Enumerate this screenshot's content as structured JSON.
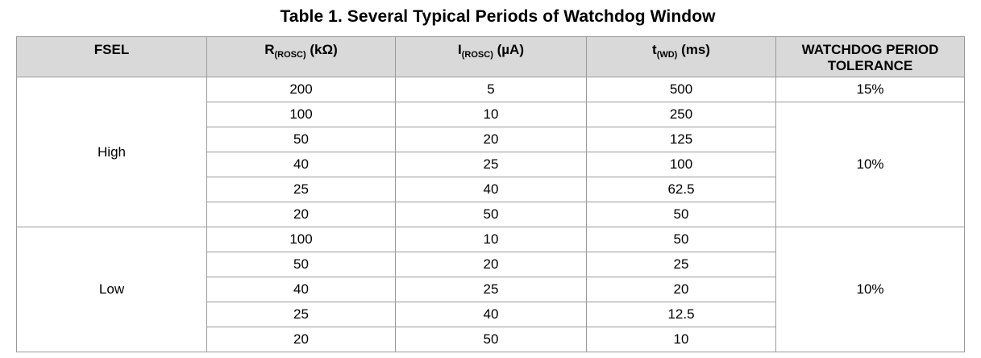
{
  "title": "Table 1. Several Typical Periods of Watchdog Window",
  "headers": {
    "fsel": "FSEL",
    "r_main": "R",
    "r_sub": "(ROSC)",
    "r_unit": " (kΩ)",
    "i_main": "I",
    "i_sub": "(ROSC)",
    "i_unit": " (µA)",
    "t_main": "t",
    "t_sub": "(WD)",
    "t_unit": " (ms)",
    "tol_line1": "WATCHDOG PERIOD",
    "tol_line2": "TOLERANCE"
  },
  "groups": [
    {
      "fsel": "High",
      "rows": [
        {
          "r": "200",
          "i": "5",
          "t": "500"
        },
        {
          "r": "100",
          "i": "10",
          "t": "250"
        },
        {
          "r": "50",
          "i": "20",
          "t": "125"
        },
        {
          "r": "40",
          "i": "25",
          "t": "100"
        },
        {
          "r": "25",
          "i": "40",
          "t": "62.5"
        },
        {
          "r": "20",
          "i": "50",
          "t": "50"
        }
      ],
      "tolerances": [
        "15%",
        "10%"
      ]
    },
    {
      "fsel": "Low",
      "rows": [
        {
          "r": "100",
          "i": "10",
          "t": "50"
        },
        {
          "r": "50",
          "i": "20",
          "t": "25"
        },
        {
          "r": "40",
          "i": "25",
          "t": "20"
        },
        {
          "r": "25",
          "i": "40",
          "t": "12.5"
        },
        {
          "r": "20",
          "i": "50",
          "t": "10"
        }
      ],
      "tolerances": [
        "10%"
      ]
    }
  ]
}
